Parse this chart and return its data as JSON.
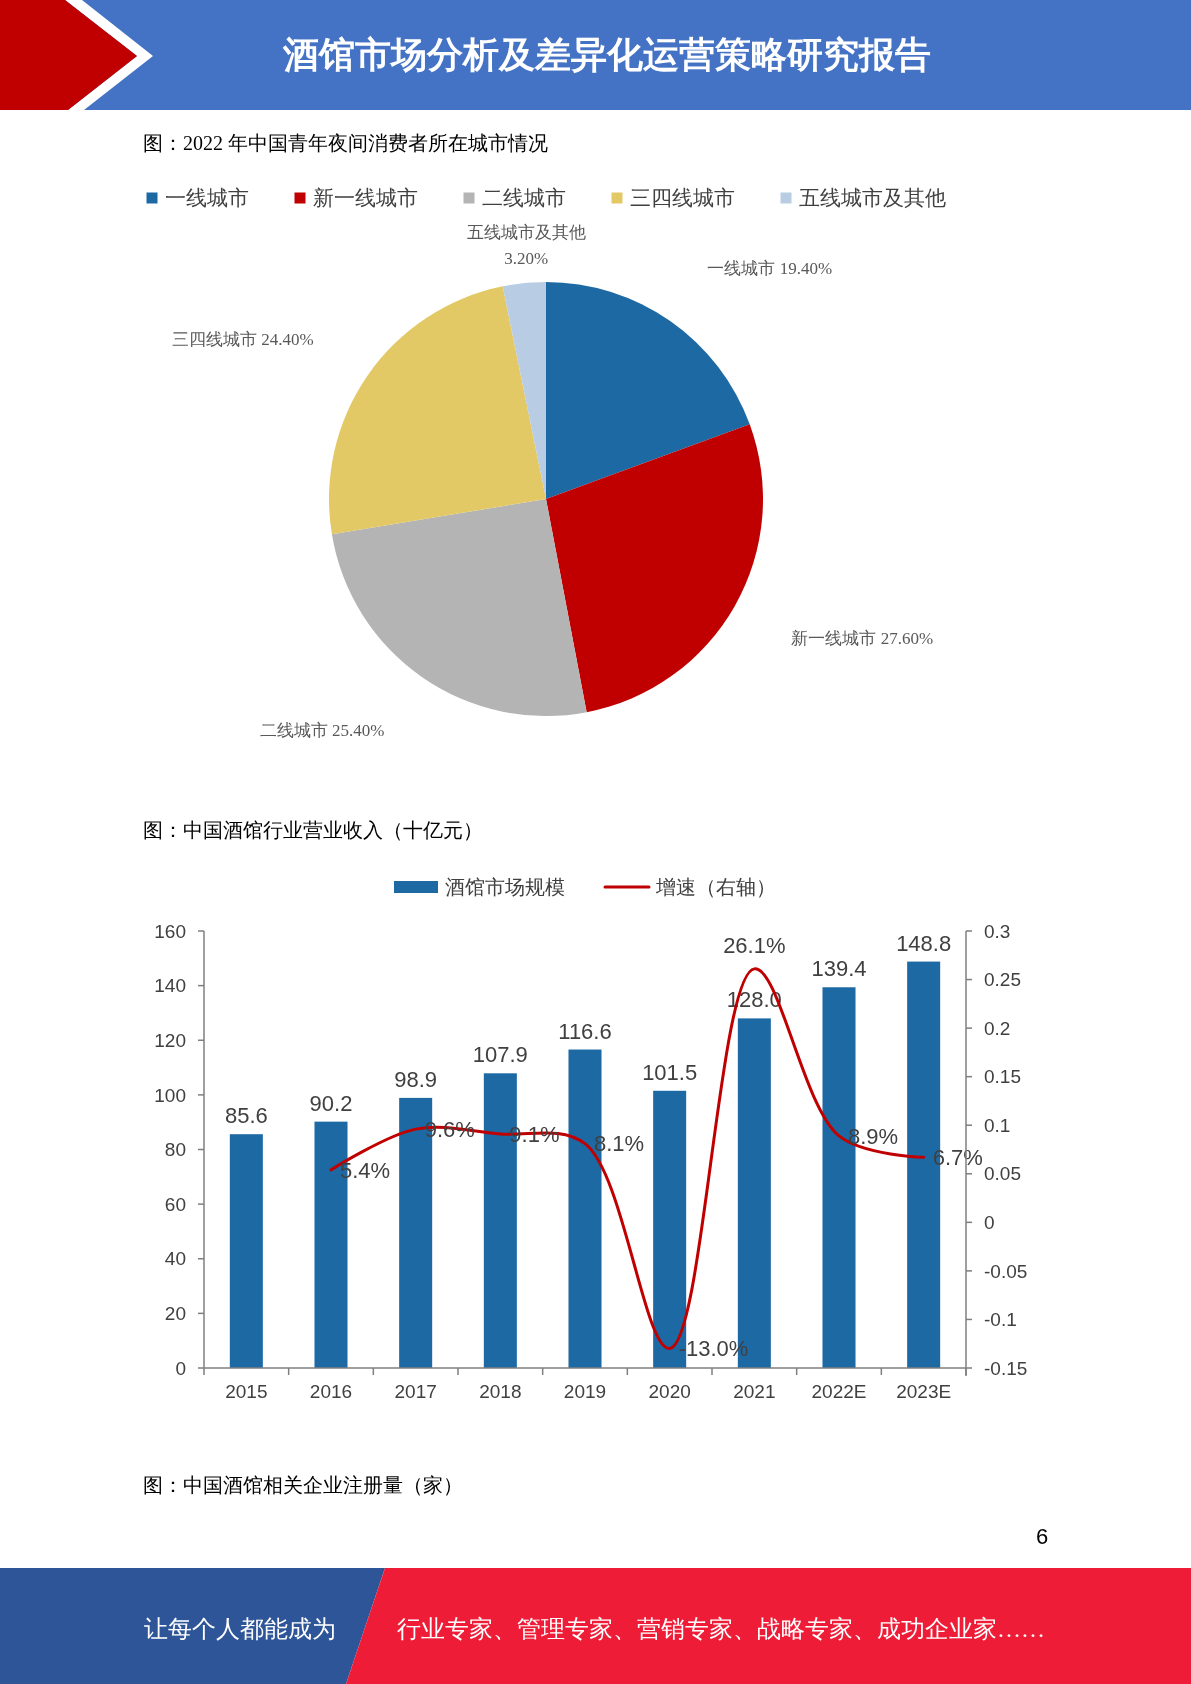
{
  "chart_data": [
    {
      "type": "pie",
      "title": "图：2022 年中国青年夜间消费者所在城市情况",
      "categories": [
        "一线城市",
        "新一线城市",
        "二线城市",
        "三四线城市",
        "五线城市及其他"
      ],
      "values": [
        19.4,
        27.6,
        25.4,
        24.4,
        3.2
      ],
      "value_labels": [
        "19.40%",
        "27.60%",
        "25.40%",
        "24.40%",
        "3.20%"
      ],
      "colors": [
        "#1d69a4",
        "#c00000",
        "#b4b4b4",
        "#e3c866",
        "#b8cde4"
      ],
      "legend": "top",
      "annotations": [
        "酒馆市场分析及差异化运营策略研究报告"
      ]
    },
    {
      "type": "bar",
      "title": "图：中国酒馆行业营业收入（十亿元）",
      "categories": [
        "2015",
        "2016",
        "2017",
        "2018",
        "2019",
        "2020",
        "2021",
        "2022E",
        "2023E"
      ],
      "series": [
        {
          "name": "酒馆市场规模",
          "type": "bar",
          "color": "#1d69a4",
          "values": [
            85.6,
            90.2,
            98.9,
            107.9,
            116.6,
            101.5,
            128.0,
            139.4,
            148.8
          ],
          "value_labels": [
            "85.6",
            "90.2",
            "98.9",
            "107.9",
            "116.6",
            "101.5",
            "128.0",
            "139.4",
            "148.8"
          ]
        },
        {
          "name": "增速（右轴）",
          "type": "line",
          "axis": "y2",
          "color": "#c00000",
          "values": [
            null,
            0.054,
            0.096,
            0.091,
            0.081,
            -0.13,
            0.261,
            0.089,
            0.067
          ],
          "value_labels": [
            null,
            "5.4%",
            "9.6%",
            "9.1%",
            "8.1%",
            "-13.0%",
            "26.1%",
            "8.9%",
            "6.7%"
          ]
        }
      ],
      "ylim": [
        0,
        160
      ],
      "yticks": [
        0,
        20,
        40,
        60,
        80,
        100,
        120,
        140,
        160
      ],
      "y2lim": [
        -0.15,
        0.3
      ],
      "y2ticks": [
        -0.15,
        -0.1,
        -0.05,
        0,
        0.05,
        0.1,
        0.15,
        0.2,
        0.25,
        0.3
      ],
      "legend": "top",
      "annotations": [
        "图：中国酒馆相关企业注册量（家）",
        "6",
        "让每个人都能成为",
        "行业专家、管理专家、营销专家、战略专家、成功企业家……"
      ]
    }
  ]
}
